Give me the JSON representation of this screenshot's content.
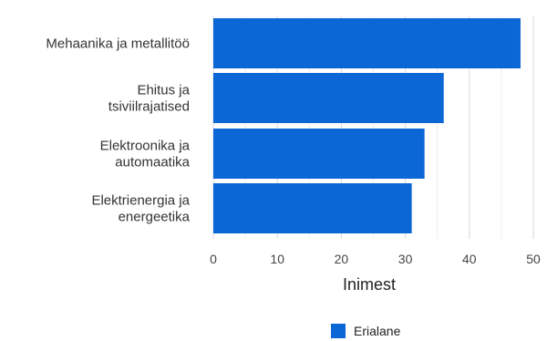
{
  "chart_data": {
    "type": "bar",
    "orientation": "horizontal",
    "categories": [
      [
        "Mehaanika ja metallitöö"
      ],
      [
        "Ehitus ja",
        "tsiviilrajatised"
      ],
      [
        "Elektroonika ja",
        "automaatika"
      ],
      [
        "Elektrienergia ja",
        "energeetika"
      ]
    ],
    "series": [
      {
        "name": "Erialane",
        "values": [
          48,
          36,
          33,
          31
        ],
        "color": "#0b66d6"
      }
    ],
    "xlabel": "Inimest",
    "xlim": [
      0,
      50
    ],
    "xticks": [
      0,
      10,
      20,
      30,
      40,
      50
    ],
    "grid": true,
    "legend_position": "bottom"
  }
}
